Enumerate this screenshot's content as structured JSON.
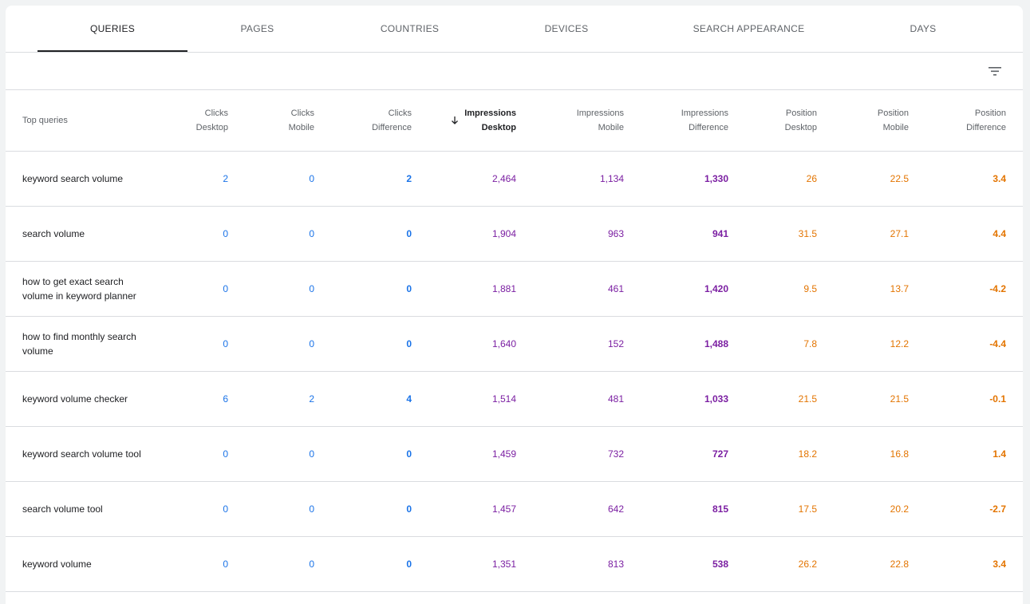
{
  "tabs": [
    "QUERIES",
    "PAGES",
    "COUNTRIES",
    "DEVICES",
    "SEARCH APPEARANCE",
    "DAYS"
  ],
  "active_tab": "QUERIES",
  "toolbar": {
    "filter_icon": "filter-icon"
  },
  "table": {
    "columns": [
      {
        "line1": "Top queries",
        "line2": ""
      },
      {
        "line1": "Clicks",
        "line2": "Desktop"
      },
      {
        "line1": "Clicks",
        "line2": "Mobile"
      },
      {
        "line1": "Clicks",
        "line2": "Difference"
      },
      {
        "line1": "Impressions",
        "line2": "Desktop"
      },
      {
        "line1": "Impressions",
        "line2": "Mobile"
      },
      {
        "line1": "Impressions",
        "line2": "Difference"
      },
      {
        "line1": "Position",
        "line2": "Desktop"
      },
      {
        "line1": "Position",
        "line2": "Mobile"
      },
      {
        "line1": "Position",
        "line2": "Difference"
      }
    ],
    "sorted_column": "Impressions Desktop",
    "sort_direction": "descending",
    "rows": [
      {
        "query": "keyword search volume",
        "clicks_desktop": "2",
        "clicks_mobile": "0",
        "clicks_diff": "2",
        "impr_desktop": "2,464",
        "impr_mobile": "1,134",
        "impr_diff": "1,330",
        "pos_desktop": "26",
        "pos_mobile": "22.5",
        "pos_diff": "3.4"
      },
      {
        "query": "search volume",
        "clicks_desktop": "0",
        "clicks_mobile": "0",
        "clicks_diff": "0",
        "impr_desktop": "1,904",
        "impr_mobile": "963",
        "impr_diff": "941",
        "pos_desktop": "31.5",
        "pos_mobile": "27.1",
        "pos_diff": "4.4"
      },
      {
        "query": "how to get exact search volume in keyword planner",
        "clicks_desktop": "0",
        "clicks_mobile": "0",
        "clicks_diff": "0",
        "impr_desktop": "1,881",
        "impr_mobile": "461",
        "impr_diff": "1,420",
        "pos_desktop": "9.5",
        "pos_mobile": "13.7",
        "pos_diff": "-4.2"
      },
      {
        "query": "how to find monthly search volume",
        "clicks_desktop": "0",
        "clicks_mobile": "0",
        "clicks_diff": "0",
        "impr_desktop": "1,640",
        "impr_mobile": "152",
        "impr_diff": "1,488",
        "pos_desktop": "7.8",
        "pos_mobile": "12.2",
        "pos_diff": "-4.4"
      },
      {
        "query": "keyword volume checker",
        "clicks_desktop": "6",
        "clicks_mobile": "2",
        "clicks_diff": "4",
        "impr_desktop": "1,514",
        "impr_mobile": "481",
        "impr_diff": "1,033",
        "pos_desktop": "21.5",
        "pos_mobile": "21.5",
        "pos_diff": "-0.1"
      },
      {
        "query": "keyword search volume tool",
        "clicks_desktop": "0",
        "clicks_mobile": "0",
        "clicks_diff": "0",
        "impr_desktop": "1,459",
        "impr_mobile": "732",
        "impr_diff": "727",
        "pos_desktop": "18.2",
        "pos_mobile": "16.8",
        "pos_diff": "1.4"
      },
      {
        "query": "search volume tool",
        "clicks_desktop": "0",
        "clicks_mobile": "0",
        "clicks_diff": "0",
        "impr_desktop": "1,457",
        "impr_mobile": "642",
        "impr_diff": "815",
        "pos_desktop": "17.5",
        "pos_mobile": "20.2",
        "pos_diff": "-2.7"
      },
      {
        "query": "keyword volume",
        "clicks_desktop": "0",
        "clicks_mobile": "0",
        "clicks_diff": "0",
        "impr_desktop": "1,351",
        "impr_mobile": "813",
        "impr_diff": "538",
        "pos_desktop": "26.2",
        "pos_mobile": "22.8",
        "pos_diff": "3.4"
      }
    ]
  },
  "colors": {
    "clicks": "#1a73e8",
    "impressions": "#7b1fa2",
    "position": "#e37400",
    "divider": "#dadce0"
  }
}
